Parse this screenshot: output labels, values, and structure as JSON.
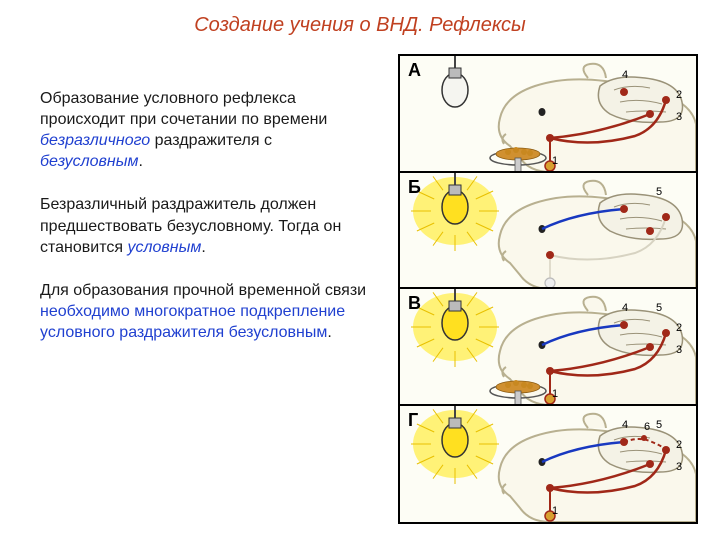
{
  "title": "Создание учения о ВНД. Рефлексы",
  "para1": {
    "t1": "Образование условного рефлекса происходит при сочетании по времени ",
    "t2": "безразличного",
    "t3": " раздражителя с ",
    "t4": "безусловным",
    "t5": "."
  },
  "para2": {
    "t1": "Безразличный раздражитель должен предшествовать безусловному. Тогда он становится ",
    "t2": "условным",
    "t3": "."
  },
  "para3": {
    "t1": "Для образования прочной временной связи ",
    "t2": "необходимо многократное подкрепление условного раздражителя безусловным",
    "t3": "."
  },
  "diagram": {
    "panels": [
      {
        "label": "А",
        "light_on": false,
        "food": true,
        "nums": [
          "1",
          "2",
          "3",
          "4"
        ],
        "paths": [
          "red"
        ]
      },
      {
        "label": "Б",
        "light_on": true,
        "food": false,
        "nums": [
          "5"
        ],
        "paths": [
          "blue"
        ]
      },
      {
        "label": "В",
        "light_on": true,
        "food": true,
        "nums": [
          "1",
          "2",
          "3",
          "4",
          "5"
        ],
        "paths": [
          "red",
          "blue"
        ]
      },
      {
        "label": "Г",
        "light_on": true,
        "food": false,
        "nums": [
          "1",
          "2",
          "3",
          "4",
          "5",
          "6"
        ],
        "paths": [
          "red",
          "blue",
          "link"
        ]
      }
    ],
    "colors": {
      "dog_outline": "#b8b090",
      "dog_fill": "#faf8ec",
      "brain_outline": "#9a9278",
      "red_path": "#a02818",
      "blue_path": "#1838c0",
      "bulb_off_fill": "#f5f5f0",
      "bulb_on_fill": "#ffe020",
      "bulb_glow": "#fff060",
      "food": "#d09030",
      "node": "#a02818"
    },
    "panel_bg": "#fdfdf5",
    "border_color": "#000000",
    "title_color": "#c04020",
    "blue_text": "#2040d0",
    "body_text": "#1a1a1a",
    "font_body": 16,
    "font_title": 20
  }
}
